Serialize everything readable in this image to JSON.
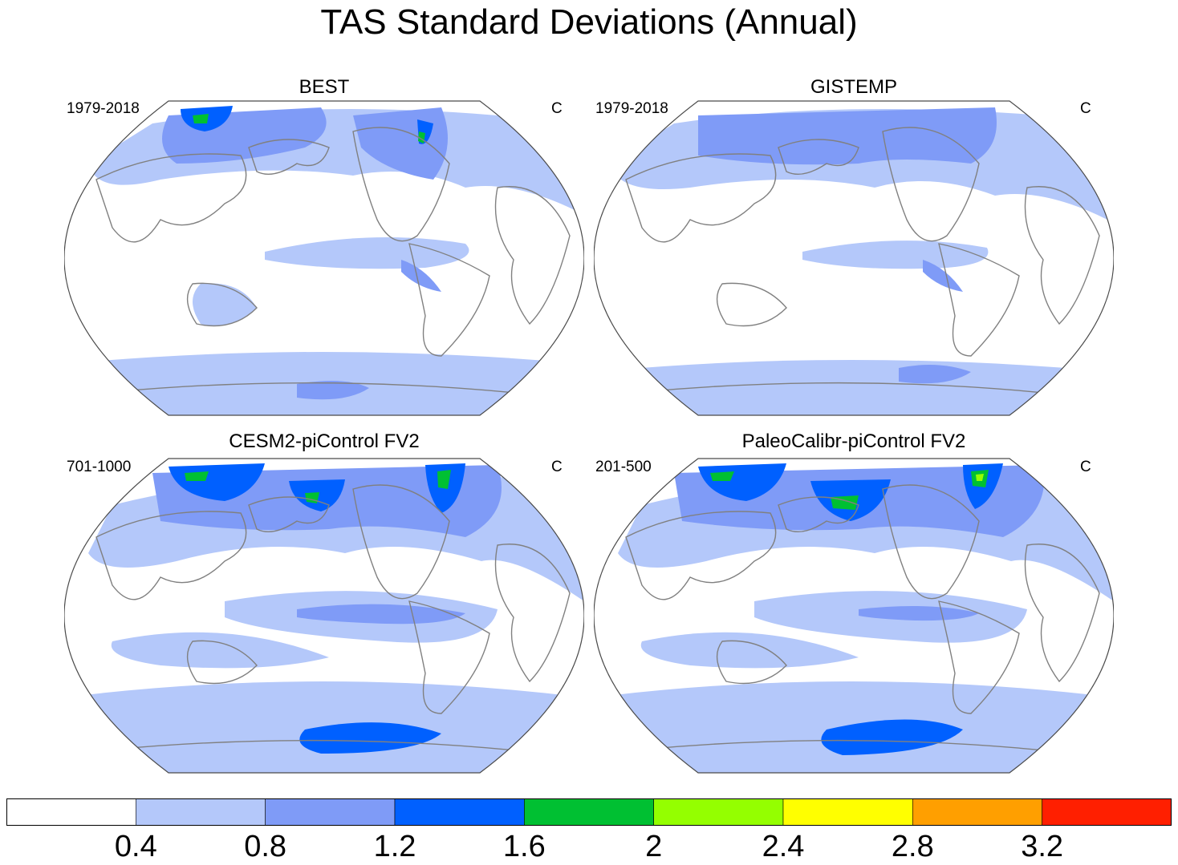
{
  "title": "TAS Standard Deviations (Annual)",
  "panels": [
    {
      "title": "BEST",
      "left_label": "1979-2018",
      "right_label": "C"
    },
    {
      "title": "GISTEMP",
      "left_label": "1979-2018",
      "right_label": "C"
    },
    {
      "title": "CESM2-piControl FV2",
      "left_label": "701-1000",
      "right_label": "C"
    },
    {
      "title": "PaleoCalibr-piControl FV2",
      "left_label": "201-500",
      "right_label": "C"
    }
  ],
  "colorbar": {
    "colors": [
      "#ffffff",
      "#b4c8fa",
      "#7f9bf7",
      "#0060ff",
      "#00c032",
      "#94ff00",
      "#ffff00",
      "#ff9f00",
      "#ff1f00"
    ],
    "tick_labels": [
      "0.4",
      "0.8",
      "1.2",
      "1.6",
      "2",
      "2.4",
      "2.8",
      "3.2"
    ]
  },
  "palette": {
    "coast": "#808080",
    "border": "#4a4a4a"
  }
}
